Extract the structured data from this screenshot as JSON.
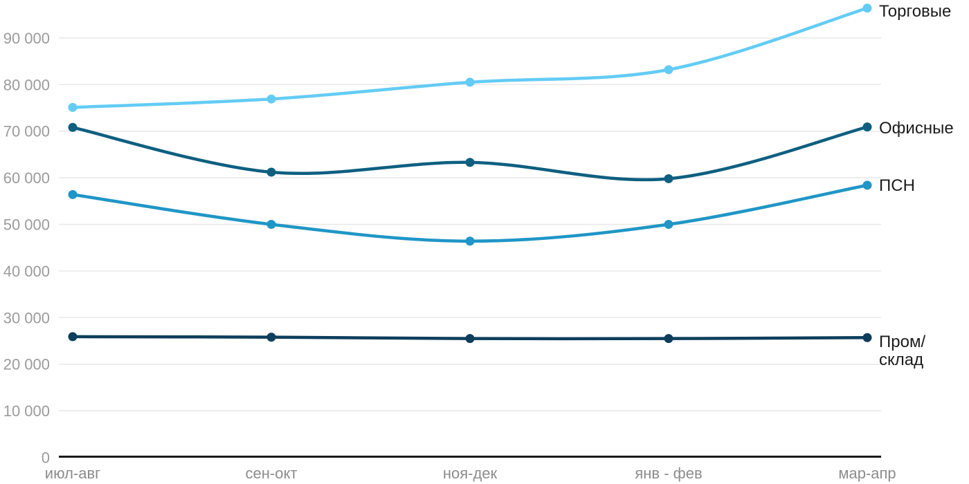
{
  "chart_data": {
    "type": "line",
    "title": "",
    "xlabel": "",
    "ylabel": "",
    "grid": "horizontal",
    "legend_position": "right-end-labels",
    "ylim": [
      0,
      97000
    ],
    "categories": [
      "июл-авг",
      "сен-окт",
      "ноя-дек",
      "янв - фев",
      "мар-апр"
    ],
    "y_ticks": [
      {
        "value": 0,
        "label": "0"
      },
      {
        "value": 10000,
        "label": "10 000"
      },
      {
        "value": 20000,
        "label": "20 000"
      },
      {
        "value": 30000,
        "label": "30 000"
      },
      {
        "value": 40000,
        "label": "40 000"
      },
      {
        "value": 50000,
        "label": "50 000"
      },
      {
        "value": 60000,
        "label": "60 000"
      },
      {
        "value": 70000,
        "label": "70 000"
      },
      {
        "value": 80000,
        "label": "80 000"
      },
      {
        "value": 90000,
        "label": "90 000"
      }
    ],
    "series": [
      {
        "name": "Торговые",
        "color": "#63CCF5",
        "values": [
          75100,
          76900,
          80500,
          83200,
          96400
        ]
      },
      {
        "name": "Офисные",
        "color": "#0E5F80",
        "values": [
          70800,
          61200,
          63300,
          59800,
          70900
        ]
      },
      {
        "name": "ПСН",
        "color": "#1F96C6",
        "values": [
          56400,
          50000,
          46400,
          50000,
          58400
        ]
      },
      {
        "name": "Пром/склад",
        "color": "#0D3E5C",
        "values": [
          25900,
          25800,
          25500,
          25500,
          25700
        ],
        "name_lines": [
          "Пром/",
          "склад"
        ]
      }
    ]
  },
  "colors": {
    "background": "#FFFFFF",
    "grid": "#E8E8E8",
    "axis": "#1A1A1A",
    "y_tick": "#9B9B9B",
    "x_tick": "#8C8C8C",
    "series_label": "#1C1C1C"
  }
}
